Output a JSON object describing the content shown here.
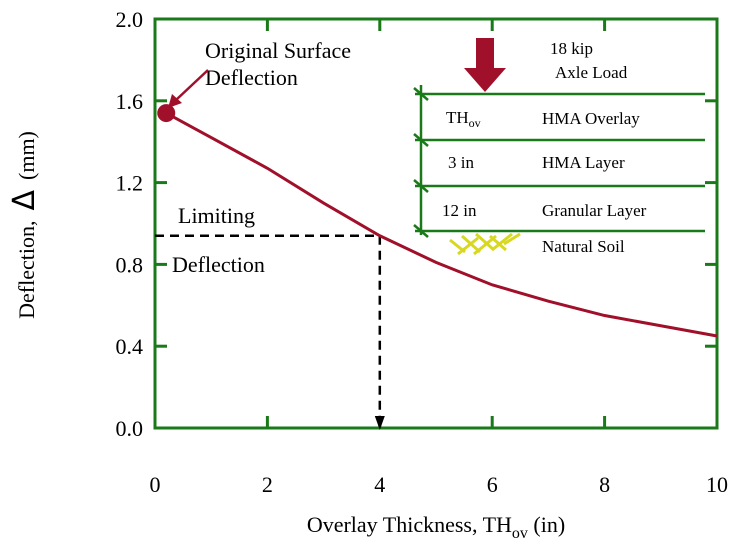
{
  "chart_data": {
    "type": "line",
    "x_label": {
      "text": "Overlay Thickness,  TH",
      "sub": "ov",
      "tail": " (in)"
    },
    "y_label": {
      "text": "Deflection,",
      "symbol": "Δ",
      "tail": "(mm)"
    },
    "xlim": [
      0,
      10
    ],
    "xticks": [
      0,
      2,
      4,
      6,
      8,
      10
    ],
    "ylim": [
      0,
      2
    ],
    "yticks": [
      {
        "value": 0,
        "label": "0.0"
      },
      0.4,
      0.8,
      1.2,
      1.6,
      {
        "value": 2,
        "label": "2.0"
      }
    ],
    "series": [
      {
        "color": "#a0102a",
        "x": [
          0.2,
          1,
          2,
          3,
          4,
          5,
          6,
          7,
          8,
          9,
          10
        ],
        "values": [
          1.54,
          1.42,
          1.27,
          1.1,
          0.94,
          0.81,
          0.7,
          0.62,
          0.55,
          0.5,
          0.45
        ]
      }
    ],
    "limit": {
      "x": 4,
      "y": 0.94
    },
    "annotations": {
      "original": [
        "Original Surface",
        "Deflection"
      ],
      "limiting": [
        "Limiting",
        "Deflection"
      ]
    },
    "layers": {
      "load": [
        "18 kip",
        "Axle Load"
      ],
      "overlay_thickness": {
        "text": "TH",
        "sub": "ov"
      },
      "overlay": "HMA Overlay",
      "hma_thickness": "3 in",
      "hma": "HMA Layer",
      "granular_thickness": "12 in",
      "granular": "Granular Layer",
      "soil": "Natural Soil"
    }
  }
}
